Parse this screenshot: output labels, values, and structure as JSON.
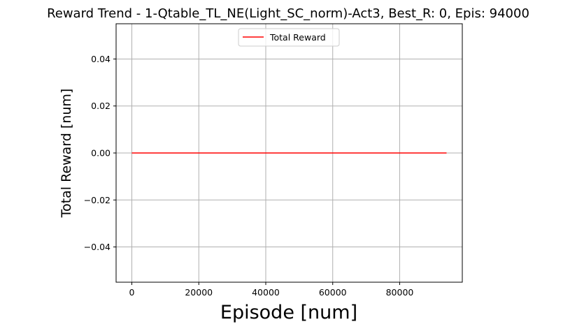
{
  "chart_data": {
    "type": "line",
    "title": "Reward Trend - 1-Qtable_TL_NE(Light_SC_norm)-Act3, Best_R: 0, Epis: 94000",
    "xlabel": "Episode [num]",
    "ylabel": "Total Reward [num]",
    "xlim": [
      -4700,
      98700
    ],
    "ylim": [
      -0.055,
      0.055
    ],
    "xticks": [
      0,
      20000,
      40000,
      60000,
      80000
    ],
    "xtick_labels": [
      "0",
      "20000",
      "40000",
      "60000",
      "80000"
    ],
    "yticks": [
      -0.04,
      -0.02,
      0.0,
      0.02,
      0.04
    ],
    "ytick_labels": [
      "−0.04",
      "−0.02",
      "0.00",
      "0.02",
      "0.04"
    ],
    "grid": true,
    "legend": {
      "position": "upper-center",
      "entries": [
        "Total Reward"
      ]
    },
    "series": [
      {
        "name": "Total Reward",
        "color": "#ff0000",
        "x": [
          0,
          10000,
          20000,
          30000,
          40000,
          50000,
          60000,
          70000,
          80000,
          90000,
          94000
        ],
        "y": [
          0,
          0,
          0,
          0,
          0,
          0,
          0,
          0,
          0,
          0,
          0
        ]
      }
    ]
  }
}
